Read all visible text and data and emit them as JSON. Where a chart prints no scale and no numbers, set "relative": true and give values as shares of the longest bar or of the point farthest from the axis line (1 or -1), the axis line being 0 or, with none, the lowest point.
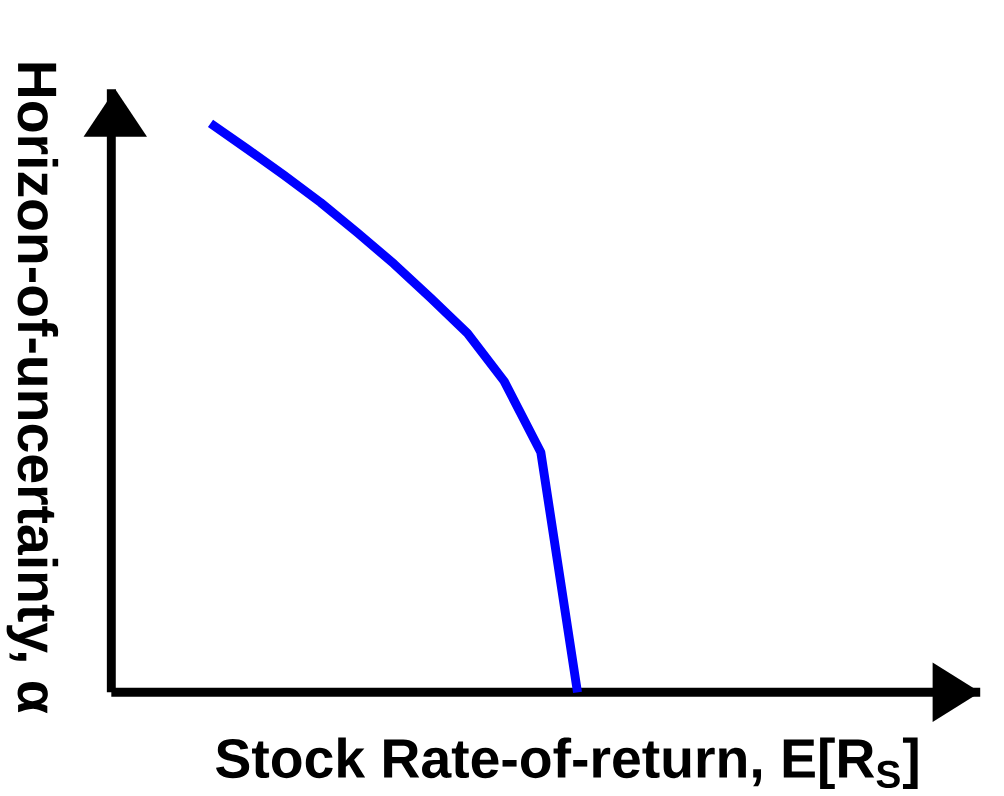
{
  "chart_data": {
    "type": "line",
    "relative": true,
    "xlabel": "Stock Rate-of-return, E[R$_{S}$]",
    "ylabel": "Horizon-of-uncertainty, α",
    "categories": [
      null,
      null,
      null,
      null,
      null,
      null,
      null,
      null,
      null,
      null,
      null
    ],
    "series": [
      {
        "color": "#0000ff",
        "values": [
          1.0,
          0.955,
          0.909,
          0.861,
          0.808,
          0.753,
          0.693,
          0.631,
          0.547,
          0.422,
          0.0
        ]
      }
    ],
    "marker": "none",
    "line_style": "solid"
  }
}
